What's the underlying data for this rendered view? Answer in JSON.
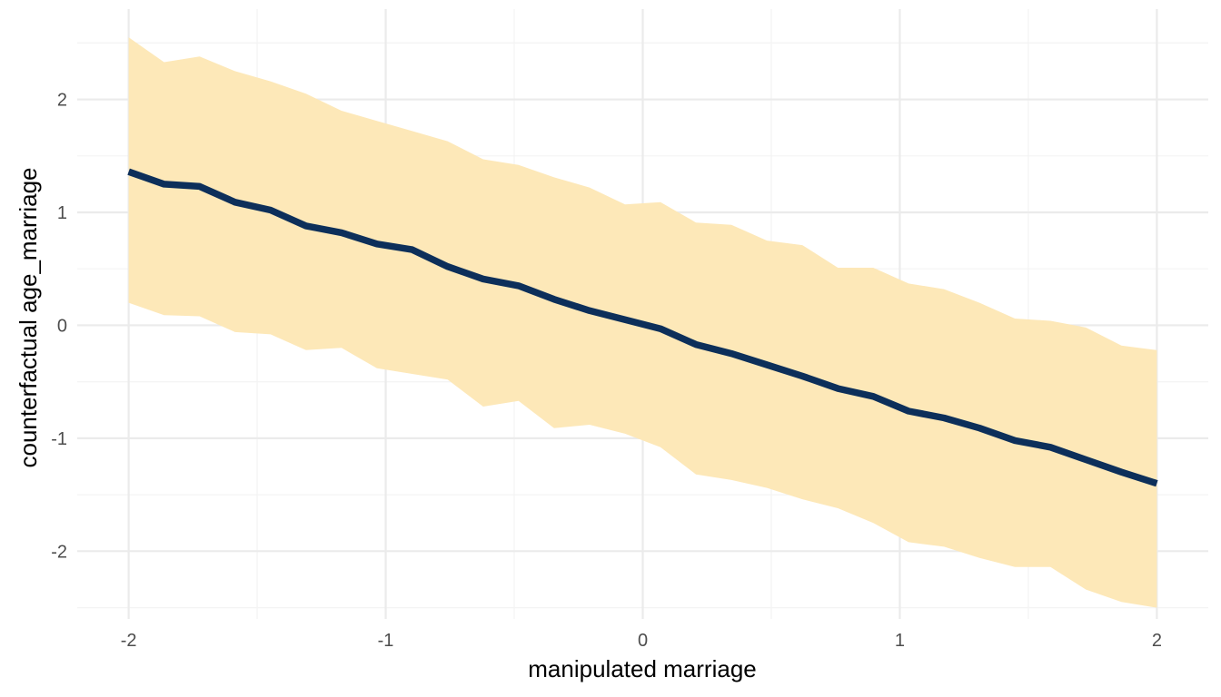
{
  "chart_data": {
    "type": "line",
    "title": "",
    "xlabel": "manipulated marriage",
    "ylabel": "counterfactual age_marriage",
    "xlim": [
      -2.2,
      2.2
    ],
    "ylim": [
      -2.6,
      2.8
    ],
    "x_ticks": [
      -2,
      -1,
      0,
      1,
      2
    ],
    "y_ticks": [
      -2,
      -1,
      0,
      1,
      2
    ],
    "x_tick_labels": [
      "-2",
      "-1",
      "0",
      "1",
      "2"
    ],
    "y_tick_labels": [
      "-2",
      "-1",
      "0",
      "1",
      "2"
    ],
    "grid": true,
    "legend": "none",
    "series": [
      {
        "x": [
          -2.0,
          -1.862,
          -1.724,
          -1.586,
          -1.448,
          -1.31,
          -1.172,
          -1.034,
          -0.897,
          -0.759,
          -0.621,
          -0.483,
          -0.345,
          -0.207,
          -0.069,
          0.069,
          0.207,
          0.345,
          0.483,
          0.621,
          0.759,
          0.897,
          1.034,
          1.172,
          1.31,
          1.448,
          1.586,
          1.724,
          1.862,
          2.0
        ],
        "y": [
          1.36,
          1.25,
          1.23,
          1.09,
          1.02,
          0.88,
          0.82,
          0.72,
          0.67,
          0.52,
          0.41,
          0.35,
          0.23,
          0.13,
          0.05,
          -0.03,
          -0.17,
          -0.25,
          -0.35,
          -0.45,
          -0.56,
          -0.63,
          -0.76,
          -0.82,
          -0.91,
          -1.02,
          -1.08,
          -1.19,
          -1.3,
          -1.4
        ],
        "lower": [
          0.2,
          0.09,
          0.08,
          -0.06,
          -0.08,
          -0.22,
          -0.2,
          -0.38,
          -0.43,
          -0.48,
          -0.72,
          -0.67,
          -0.91,
          -0.88,
          -0.96,
          -1.08,
          -1.32,
          -1.37,
          -1.44,
          -1.54,
          -1.62,
          -1.75,
          -1.92,
          -1.96,
          -2.06,
          -2.14,
          -2.14,
          -2.34,
          -2.45,
          -2.5
        ],
        "upper": [
          2.55,
          2.33,
          2.38,
          2.25,
          2.16,
          2.05,
          1.9,
          1.81,
          1.72,
          1.63,
          1.47,
          1.42,
          1.31,
          1.22,
          1.07,
          1.09,
          0.91,
          0.89,
          0.75,
          0.71,
          0.51,
          0.51,
          0.37,
          0.32,
          0.2,
          0.06,
          0.04,
          -0.02,
          -0.18,
          -0.22
        ]
      }
    ],
    "colors": {
      "line": "#0d2f5a",
      "band": "#fde8b8",
      "grid_major": "#ebebeb",
      "grid_minor": "#f4f4f4",
      "tick_text": "#4d4d4d"
    }
  }
}
